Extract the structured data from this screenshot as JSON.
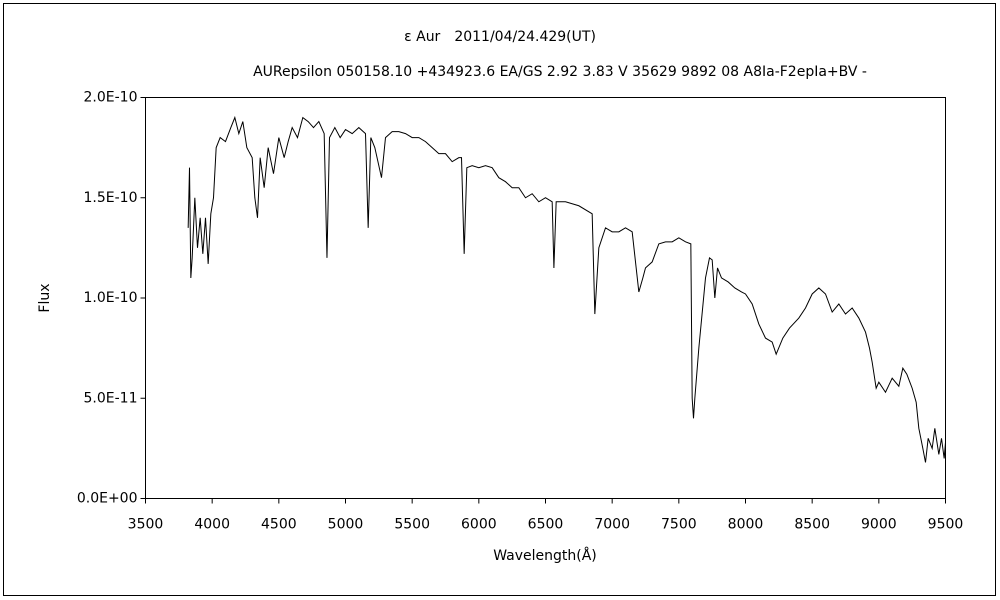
{
  "chart_data": {
    "type": "line",
    "title": "ε Aur　2011/04/24.429(UT)",
    "subtitle": "AURepsilon 050158.10 +434923.6 EA/GS 2.92 3.83 V 35629 9892 08 A8Ia-F2epIa+BV -",
    "xlabel": "Wavelength(Å)",
    "ylabel": "Flux",
    "color": "#000000",
    "xlim": [
      3500,
      9500
    ],
    "xticks": [
      3500,
      4000,
      4500,
      5000,
      5500,
      6000,
      6500,
      7000,
      7500,
      8000,
      8500,
      9000,
      9500
    ],
    "ylim": [
      0,
      2e-10
    ],
    "yticks": [
      {
        "value": 0,
        "label": "0.0E+00"
      },
      {
        "value": 5e-11,
        "label": "5.0E-11"
      },
      {
        "value": 1e-10,
        "label": "1.0E-10"
      },
      {
        "value": 1.5e-10,
        "label": "1.5E-10"
      },
      {
        "value": 2e-10,
        "label": "2.0E-10"
      }
    ],
    "grid": false,
    "x": [
      3820,
      3830,
      3840,
      3850,
      3870,
      3890,
      3910,
      3930,
      3950,
      3970,
      3990,
      4010,
      4030,
      4060,
      4100,
      4140,
      4170,
      4200,
      4230,
      4260,
      4300,
      4320,
      4340,
      4360,
      4390,
      4420,
      4460,
      4500,
      4540,
      4570,
      4600,
      4640,
      4680,
      4720,
      4760,
      4800,
      4840,
      4861,
      4880,
      4920,
      4960,
      5000,
      5050,
      5100,
      5150,
      5170,
      5190,
      5220,
      5270,
      5300,
      5350,
      5400,
      5450,
      5500,
      5550,
      5600,
      5650,
      5700,
      5750,
      5800,
      5850,
      5870,
      5890,
      5910,
      5950,
      6000,
      6050,
      6100,
      6150,
      6200,
      6250,
      6300,
      6350,
      6400,
      6450,
      6500,
      6550,
      6563,
      6580,
      6650,
      6750,
      6850,
      6870,
      6900,
      6950,
      7000,
      7050,
      7100,
      7150,
      7180,
      7200,
      7230,
      7250,
      7300,
      7350,
      7400,
      7450,
      7500,
      7550,
      7590,
      7600,
      7610,
      7620,
      7650,
      7700,
      7730,
      7750,
      7770,
      7790,
      7820,
      7870,
      7920,
      7970,
      8000,
      8050,
      8100,
      8150,
      8200,
      8230,
      8280,
      8330,
      8400,
      8450,
      8500,
      8550,
      8600,
      8650,
      8700,
      8750,
      8800,
      8850,
      8900,
      8930,
      8950,
      8980,
      9000,
      9050,
      9100,
      9150,
      9180,
      9210,
      9250,
      9280,
      9300,
      9330,
      9350,
      9370,
      9400,
      9420,
      9450,
      9470,
      9490,
      9500
    ],
    "values": [
      1.35e-10,
      1.65e-10,
      1.1e-10,
      1.2e-10,
      1.5e-10,
      1.25e-10,
      1.4e-10,
      1.22e-10,
      1.4e-10,
      1.17e-10,
      1.42e-10,
      1.5e-10,
      1.75e-10,
      1.8e-10,
      1.78e-10,
      1.85e-10,
      1.9e-10,
      1.82e-10,
      1.88e-10,
      1.75e-10,
      1.7e-10,
      1.5e-10,
      1.4e-10,
      1.7e-10,
      1.55e-10,
      1.75e-10,
      1.62e-10,
      1.8e-10,
      1.7e-10,
      1.78e-10,
      1.85e-10,
      1.8e-10,
      1.9e-10,
      1.88e-10,
      1.85e-10,
      1.88e-10,
      1.82e-10,
      1.2e-10,
      1.8e-10,
      1.85e-10,
      1.8e-10,
      1.84e-10,
      1.82e-10,
      1.85e-10,
      1.82e-10,
      1.35e-10,
      1.8e-10,
      1.75e-10,
      1.6e-10,
      1.8e-10,
      1.83e-10,
      1.83e-10,
      1.82e-10,
      1.8e-10,
      1.8e-10,
      1.78e-10,
      1.75e-10,
      1.72e-10,
      1.72e-10,
      1.68e-10,
      1.7e-10,
      1.7e-10,
      1.22e-10,
      1.65e-10,
      1.66e-10,
      1.65e-10,
      1.66e-10,
      1.65e-10,
      1.6e-10,
      1.58e-10,
      1.55e-10,
      1.55e-10,
      1.5e-10,
      1.52e-10,
      1.48e-10,
      1.5e-10,
      1.48e-10,
      1.15e-10,
      1.48e-10,
      1.48e-10,
      1.46e-10,
      1.42e-10,
      9.2e-11,
      1.25e-10,
      1.35e-10,
      1.33e-10,
      1.33e-10,
      1.35e-10,
      1.33e-10,
      1.15e-10,
      1.03e-10,
      1.1e-10,
      1.15e-10,
      1.18e-10,
      1.27e-10,
      1.28e-10,
      1.28e-10,
      1.3e-10,
      1.28e-10,
      1.27e-10,
      5e-11,
      4e-11,
      5e-11,
      7.5e-11,
      1.1e-10,
      1.2e-10,
      1.19e-10,
      1e-10,
      1.15e-10,
      1.1e-10,
      1.08e-10,
      1.05e-10,
      1.03e-10,
      1.02e-10,
      9.7e-11,
      8.7e-11,
      8e-11,
      7.8e-11,
      7.2e-11,
      8e-11,
      8.5e-11,
      9e-11,
      9.5e-11,
      1.02e-10,
      1.05e-10,
      1.02e-10,
      9.3e-11,
      9.7e-11,
      9.2e-11,
      9.5e-11,
      9e-11,
      8.3e-11,
      7.5e-11,
      6.8e-11,
      5.5e-11,
      5.8e-11,
      5.3e-11,
      6e-11,
      5.6e-11,
      6.5e-11,
      6.2e-11,
      5.5e-11,
      4.8e-11,
      3.5e-11,
      2.5e-11,
      1.8e-11,
      3e-11,
      2.5e-11,
      3.5e-11,
      2.2e-11,
      3e-11,
      2e-11,
      2.8e-11
    ]
  }
}
